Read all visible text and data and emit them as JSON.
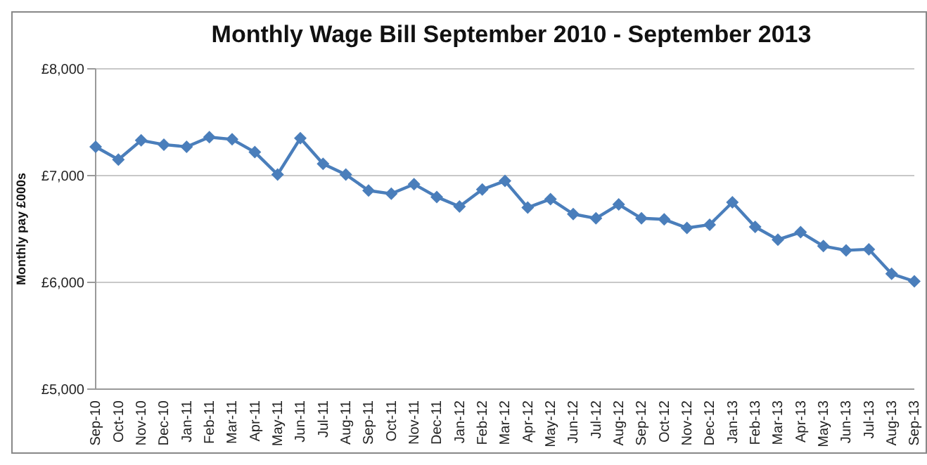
{
  "chart_data": {
    "type": "line",
    "title": "Monthly Wage Bill September 2010 - September 2013",
    "ylabel": "Monthly pay £000s",
    "categories": [
      "Sep-10",
      "Oct-10",
      "Nov-10",
      "Dec-10",
      "Jan-11",
      "Feb-11",
      "Mar-11",
      "Apr-11",
      "May-11",
      "Jun-11",
      "Jul-11",
      "Aug-11",
      "Sep-11",
      "Oct-11",
      "Nov-11",
      "Dec-11",
      "Jan-12",
      "Feb-12",
      "Mar-12",
      "Apr-12",
      "May-12",
      "Jun-12",
      "Jul-12",
      "Aug-12",
      "Sep-12",
      "Oct-12",
      "Nov-12",
      "Dec-12",
      "Jan-13",
      "Feb-13",
      "Mar-13",
      "Apr-13",
      "May-13",
      "Jun-13",
      "Jul-13",
      "Aug-13",
      "Sep-13"
    ],
    "series": [
      {
        "color": "#4a7ebb",
        "values": [
          7270,
          7150,
          7330,
          7290,
          7270,
          7360,
          7340,
          7220,
          7010,
          7350,
          7110,
          7010,
          6860,
          6830,
          6920,
          6800,
          6710,
          6870,
          6950,
          6700,
          6780,
          6640,
          6600,
          6730,
          6600,
          6590,
          6510,
          6540,
          6750,
          6520,
          6400,
          6470,
          6340,
          6300,
          6310,
          6080,
          6010
        ]
      }
    ],
    "ylim": [
      5000,
      8000
    ],
    "yticks": [
      {
        "value": 5000,
        "label": "£5,000"
      },
      {
        "value": 6000,
        "label": "£6,000"
      },
      {
        "value": 7000,
        "label": "£7,000"
      },
      {
        "value": 8000,
        "label": "£8,000"
      }
    ],
    "grid": "y",
    "marker": "diamond",
    "line_style": "solid",
    "legend": false
  }
}
